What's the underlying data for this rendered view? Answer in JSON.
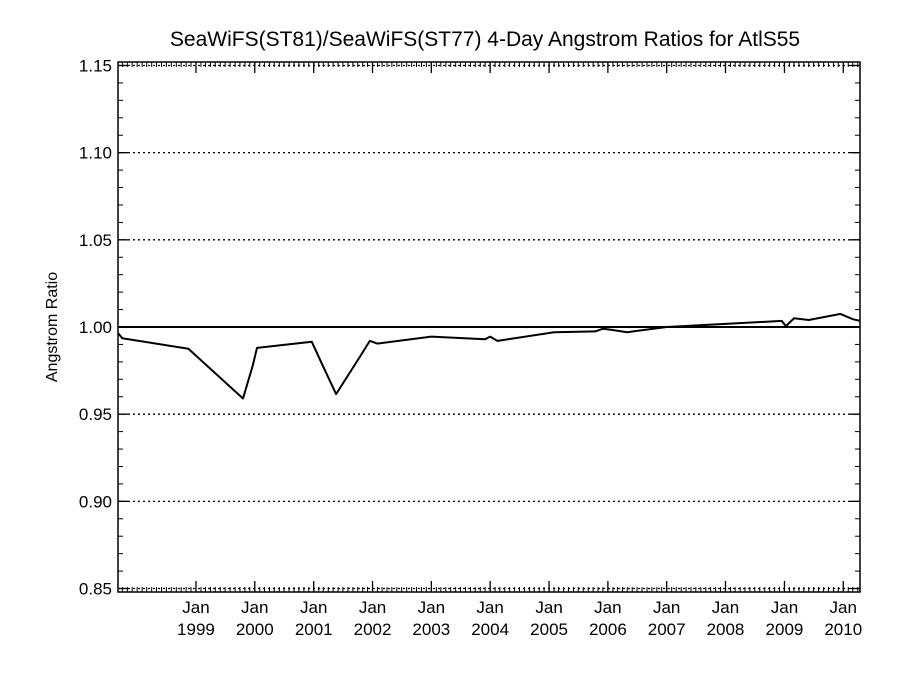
{
  "chart_data": {
    "type": "line",
    "title": "SeaWiFS(ST81)/SeaWiFS(ST77) 4-Day Angstrom Ratios for AtlS55",
    "ylabel": "Angstrom Ratio",
    "xlabel": "",
    "ylim": [
      0.848,
      1.152
    ],
    "xlim": [
      "1997-09-04",
      "2010-04-15"
    ],
    "yticks": [
      {
        "value": 0.85,
        "label": "0.85"
      },
      {
        "value": 0.9,
        "label": "0.90"
      },
      {
        "value": 0.95,
        "label": "0.95"
      },
      {
        "value": 1.0,
        "label": "1.00"
      },
      {
        "value": 1.05,
        "label": "1.05"
      },
      {
        "value": 1.1,
        "label": "1.10"
      },
      {
        "value": 1.15,
        "label": "1.15"
      }
    ],
    "xticks": [
      {
        "date": "1999-01-01",
        "month": "Jan",
        "year": "1999"
      },
      {
        "date": "2000-01-01",
        "month": "Jan",
        "year": "2000"
      },
      {
        "date": "2001-01-01",
        "month": "Jan",
        "year": "2001"
      },
      {
        "date": "2002-01-01",
        "month": "Jan",
        "year": "2002"
      },
      {
        "date": "2003-01-01",
        "month": "Jan",
        "year": "2003"
      },
      {
        "date": "2004-01-01",
        "month": "Jan",
        "year": "2004"
      },
      {
        "date": "2005-01-01",
        "month": "Jan",
        "year": "2005"
      },
      {
        "date": "2006-01-01",
        "month": "Jan",
        "year": "2006"
      },
      {
        "date": "2007-01-01",
        "month": "Jan",
        "year": "2007"
      },
      {
        "date": "2008-01-01",
        "month": "Jan",
        "year": "2008"
      },
      {
        "date": "2009-01-01",
        "month": "Jan",
        "year": "2009"
      },
      {
        "date": "2010-01-01",
        "month": "Jan",
        "year": "2010"
      }
    ],
    "grid": "dotted horizontal at major y ticks",
    "reference_line": 1.0,
    "series": [
      {
        "color": "#000000",
        "points": [
          {
            "x": "1997-09-04",
            "y": 0.9965
          },
          {
            "x": "1997-10-01",
            "y": 0.9935
          },
          {
            "x": "1998-11-15",
            "y": 0.9875
          },
          {
            "x": "1999-10-20",
            "y": 0.959
          },
          {
            "x": "1999-12-20",
            "y": 0.978
          },
          {
            "x": "2000-01-15",
            "y": 0.988
          },
          {
            "x": "2000-12-20",
            "y": 0.9915
          },
          {
            "x": "2001-02-20",
            "y": 0.979
          },
          {
            "x": "2001-05-20",
            "y": 0.9615
          },
          {
            "x": "2001-10-15",
            "y": 0.983
          },
          {
            "x": "2001-12-15",
            "y": 0.992
          },
          {
            "x": "2002-02-01",
            "y": 0.9905
          },
          {
            "x": "2003-01-01",
            "y": 0.9945
          },
          {
            "x": "2003-12-01",
            "y": 0.993
          },
          {
            "x": "2004-01-01",
            "y": 0.9945
          },
          {
            "x": "2004-02-15",
            "y": 0.992
          },
          {
            "x": "2005-02-01",
            "y": 0.997
          },
          {
            "x": "2005-10-15",
            "y": 0.9975
          },
          {
            "x": "2005-12-01",
            "y": 0.999
          },
          {
            "x": "2006-01-15",
            "y": 0.9985
          },
          {
            "x": "2006-05-01",
            "y": 0.997
          },
          {
            "x": "2007-01-01",
            "y": 1.0
          },
          {
            "x": "2008-12-15",
            "y": 1.0035
          },
          {
            "x": "2009-01-10",
            "y": 1.0005
          },
          {
            "x": "2009-03-01",
            "y": 1.005
          },
          {
            "x": "2009-06-01",
            "y": 1.004
          },
          {
            "x": "2009-12-15",
            "y": 1.0075
          },
          {
            "x": "2010-03-01",
            "y": 1.0045
          },
          {
            "x": "2010-04-15",
            "y": 1.0035
          }
        ]
      }
    ]
  }
}
